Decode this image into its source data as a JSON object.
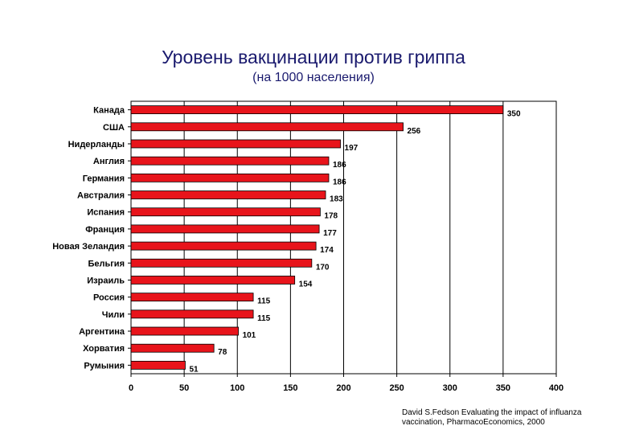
{
  "chart_data": {
    "type": "bar",
    "orientation": "horizontal",
    "title": "Уровень вакцинации против гриппа",
    "subtitle": "(на 1000 населения)",
    "categories": [
      "Канада",
      "США",
      "Нидерланды",
      "Англия",
      "Германия",
      "Австралия",
      "Испания",
      "Франция",
      "Новая Зеландия",
      "Бельгия",
      "Израиль",
      "Россия",
      "Чили",
      "Аргентина",
      "Хорватия",
      "Румыния"
    ],
    "values": [
      350,
      256,
      197,
      186,
      186,
      183,
      178,
      177,
      174,
      170,
      154,
      115,
      115,
      101,
      78,
      51
    ],
    "xlim": [
      0,
      400
    ],
    "xticks": [
      0,
      50,
      100,
      150,
      200,
      250,
      300,
      350,
      400
    ],
    "grid": true,
    "bar_color": "#e8141b",
    "bar_edge_color": "#000000",
    "data_labels": true
  },
  "source_note": {
    "line1": "David S.Fedson Evaluating the impact of influanza",
    "line2": "vaccination, PharmacoEconomics, 2000"
  }
}
